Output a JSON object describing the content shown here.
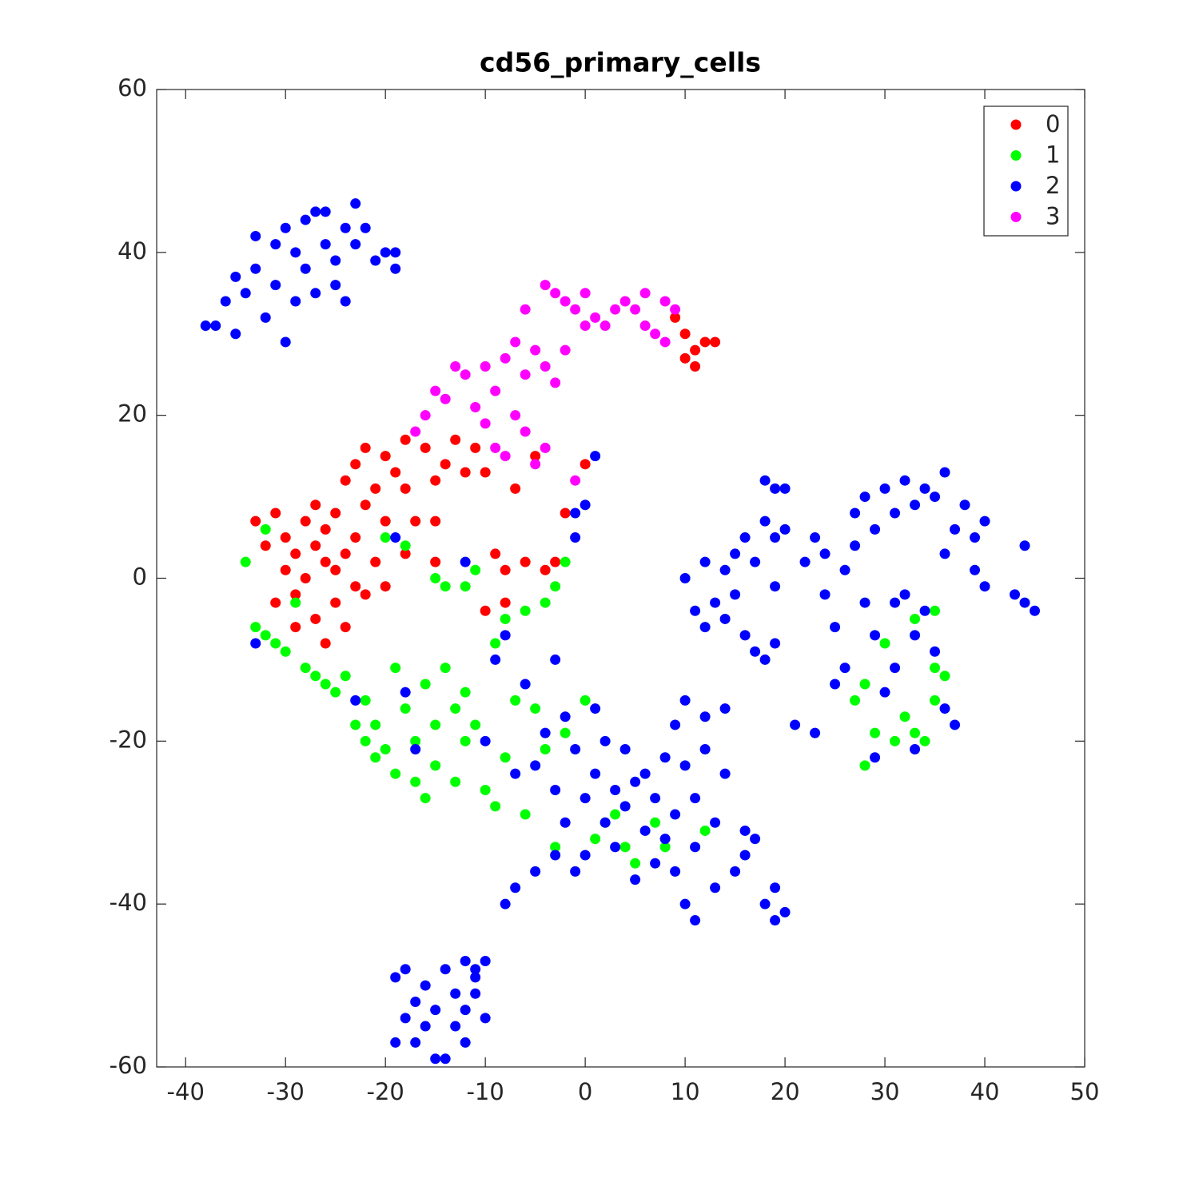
{
  "chart_data": {
    "type": "scatter",
    "title": "cd56_primary_cells",
    "xlim": [
      -42.9,
      50
    ],
    "ylim": [
      -60,
      60
    ],
    "xticks": [
      -40,
      -30,
      -20,
      -10,
      0,
      10,
      20,
      30,
      40,
      50
    ],
    "yticks": [
      -60,
      -40,
      -20,
      0,
      20,
      40,
      60
    ],
    "grid": false,
    "legend": "upper right",
    "series": [
      {
        "name": "0",
        "color": "#ff0000",
        "x": [
          -33,
          -32,
          -31,
          -30,
          -30,
          -29,
          -29,
          -28,
          -28,
          -27,
          -27,
          -27,
          -26,
          -26,
          -26,
          -25,
          -25,
          -25,
          -24,
          -24,
          -24,
          -23,
          -23,
          -23,
          -22,
          -22,
          -22,
          -21,
          -21,
          -20,
          -20,
          -19,
          -18,
          -18,
          -17,
          -16,
          -15,
          -15,
          -14,
          -13,
          -12,
          -11,
          -10,
          -9,
          -8,
          -7,
          -6,
          -5,
          -4,
          -3,
          -2,
          0,
          -10,
          -8,
          -15,
          -18,
          -20,
          -29,
          -31,
          9,
          10,
          11,
          12,
          13,
          10,
          11
        ],
        "values": [
          7,
          4,
          8,
          5,
          1,
          3,
          -2,
          7,
          0,
          9,
          4,
          -5,
          -8,
          2,
          6,
          -3,
          1,
          8,
          -6,
          3,
          12,
          -1,
          5,
          14,
          9,
          -2,
          16,
          11,
          2,
          15,
          7,
          13,
          17,
          11,
          7,
          16,
          12,
          7,
          14,
          17,
          13,
          16,
          13,
          3,
          1,
          11,
          2,
          15,
          1,
          2,
          8,
          14,
          -4,
          -3,
          2,
          3,
          -1,
          -6,
          -3,
          32,
          30,
          28,
          29,
          29,
          27,
          26
        ]
      },
      {
        "name": "1",
        "color": "#00ff00",
        "x": [
          -34,
          -33,
          -32,
          -31,
          -30,
          -29,
          -28,
          -27,
          -26,
          -25,
          -24,
          -23,
          -22,
          -22,
          -21,
          -21,
          -20,
          -19,
          -19,
          -18,
          -17,
          -17,
          -16,
          -16,
          -15,
          -15,
          -14,
          -13,
          -13,
          -12,
          -12,
          -11,
          -10,
          -9,
          -8,
          -7,
          -6,
          -5,
          -4,
          -3,
          -2,
          0,
          1,
          2,
          3,
          4,
          5,
          7,
          8,
          12,
          -12,
          -11,
          -14,
          -9,
          -8,
          -6,
          -4,
          -3,
          -2,
          -18,
          -20,
          -32,
          -15,
          28,
          29,
          30,
          31,
          32,
          33,
          33,
          34,
          35,
          35,
          36,
          35,
          27,
          28
        ],
        "values": [
          2,
          -6,
          -7,
          -8,
          -9,
          -3,
          -11,
          -12,
          -13,
          -14,
          -12,
          -18,
          -15,
          -20,
          -22,
          -18,
          -21,
          -24,
          -11,
          -16,
          -20,
          -25,
          -27,
          -13,
          -18,
          -23,
          -11,
          -25,
          -16,
          -20,
          -14,
          -18,
          -26,
          -28,
          -22,
          -15,
          -29,
          -16,
          -21,
          -33,
          -19,
          -15,
          -32,
          -30,
          -29,
          -33,
          -35,
          -30,
          -33,
          -31,
          -1,
          1,
          -1,
          -8,
          -5,
          -4,
          -3,
          -1,
          2,
          4,
          5,
          6,
          0,
          -13,
          -19,
          -8,
          -20,
          -17,
          -5,
          -19,
          -20,
          -15,
          -11,
          -12,
          -4,
          -15,
          -23
        ]
      },
      {
        "name": "2",
        "color": "#0000ff",
        "x": [
          -38,
          -37,
          -36,
          -35,
          -35,
          -34,
          -33,
          -33,
          -32,
          -31,
          -31,
          -30,
          -30,
          -29,
          -29,
          -28,
          -28,
          -27,
          -27,
          -26,
          -26,
          -25,
          -25,
          -24,
          -24,
          -23,
          -23,
          -22,
          -21,
          -20,
          -19,
          -19,
          10,
          11,
          12,
          12,
          13,
          14,
          14,
          15,
          15,
          16,
          16,
          17,
          17,
          18,
          18,
          18,
          19,
          19,
          19,
          20,
          20,
          19,
          21,
          22,
          23,
          23,
          24,
          24,
          25,
          25,
          26,
          26,
          27,
          27,
          28,
          28,
          29,
          29,
          29,
          30,
          30,
          31,
          31,
          31,
          32,
          32,
          33,
          33,
          33,
          34,
          34,
          35,
          35,
          36,
          36,
          36,
          37,
          37,
          38,
          39,
          39,
          40,
          40,
          44,
          43,
          44,
          45,
          -10,
          -9,
          -8,
          -7,
          -6,
          -5,
          -4,
          -3,
          -3,
          -2,
          -2,
          -1,
          -1,
          0,
          0,
          1,
          1,
          2,
          2,
          3,
          3,
          4,
          4,
          5,
          5,
          6,
          6,
          7,
          7,
          8,
          8,
          9,
          9,
          9,
          10,
          10,
          10,
          11,
          11,
          11,
          12,
          12,
          13,
          13,
          14,
          14,
          15,
          16,
          16,
          17,
          18,
          19,
          20,
          19,
          -8,
          -7,
          -5,
          -3,
          -1,
          0,
          1,
          -1,
          -19,
          -19,
          -18,
          -18,
          -17,
          -17,
          -16,
          -16,
          -15,
          -15,
          -14,
          -14,
          -13,
          -13,
          -12,
          -12,
          -12,
          -11,
          -11,
          -10,
          -10,
          -11,
          -33,
          -18,
          -17,
          -23,
          -12,
          -19
        ],
        "values": [
          31,
          31,
          34,
          37,
          30,
          35,
          42,
          38,
          32,
          41,
          36,
          43,
          29,
          40,
          34,
          44,
          38,
          45,
          35,
          45,
          41,
          39,
          36,
          43,
          34,
          46,
          41,
          43,
          39,
          40,
          38,
          40,
          0,
          -4,
          -6,
          2,
          -3,
          1,
          -5,
          3,
          -2,
          -7,
          5,
          2,
          -9,
          -10,
          7,
          12,
          11,
          -8,
          5,
          6,
          11,
          -1,
          -18,
          2,
          -19,
          5,
          -2,
          3,
          -13,
          -6,
          1,
          -11,
          4,
          8,
          -3,
          10,
          -7,
          6,
          -22,
          11,
          -14,
          -3,
          8,
          -11,
          12,
          -2,
          -21,
          -7,
          9,
          11,
          -4,
          -9,
          10,
          -16,
          13,
          3,
          -18,
          6,
          9,
          1,
          5,
          -1,
          7,
          4,
          -2,
          -3,
          -4,
          -20,
          -10,
          -7,
          -24,
          -13,
          -23,
          -19,
          -34,
          -26,
          -17,
          -30,
          -36,
          -21,
          -27,
          -34,
          -24,
          -16,
          -30,
          -20,
          -26,
          -33,
          -21,
          -28,
          -25,
          -37,
          -31,
          -24,
          -27,
          -35,
          -22,
          -32,
          -29,
          -18,
          -36,
          -23,
          -40,
          -15,
          -42,
          -27,
          -33,
          -21,
          -17,
          -30,
          -38,
          -16,
          -24,
          -36,
          -31,
          -34,
          -32,
          -40,
          -38,
          -41,
          -42,
          -40,
          -38,
          -36,
          -10,
          5,
          9,
          15,
          8,
          -57,
          -49,
          -54,
          -48,
          -52,
          -57,
          -50,
          -55,
          -53,
          -59,
          -48,
          -59,
          -51,
          -55,
          -47,
          -53,
          -57,
          -49,
          -51,
          -47,
          -54,
          -48,
          -8,
          -14,
          -21,
          -15,
          2,
          5
        ]
      },
      {
        "name": "3",
        "color": "#ff00ff",
        "x": [
          -17,
          -16,
          -15,
          -14,
          -13,
          -12,
          -11,
          -10,
          -10,
          -9,
          -9,
          -8,
          -8,
          -7,
          -7,
          -6,
          -6,
          -5,
          -5,
          -4,
          -4,
          -4,
          -3,
          -3,
          -2,
          -1,
          -1,
          0,
          0,
          1,
          2,
          3,
          4,
          5,
          6,
          6,
          7,
          8,
          8,
          9,
          -2,
          -6
        ],
        "values": [
          18,
          20,
          23,
          22,
          26,
          25,
          21,
          26,
          19,
          23,
          16,
          27,
          15,
          20,
          29,
          25,
          33,
          28,
          14,
          26,
          16,
          36,
          35,
          24,
          34,
          33,
          12,
          35,
          31,
          32,
          31,
          33,
          34,
          33,
          31,
          35,
          30,
          34,
          29,
          33,
          28,
          18
        ]
      }
    ]
  }
}
